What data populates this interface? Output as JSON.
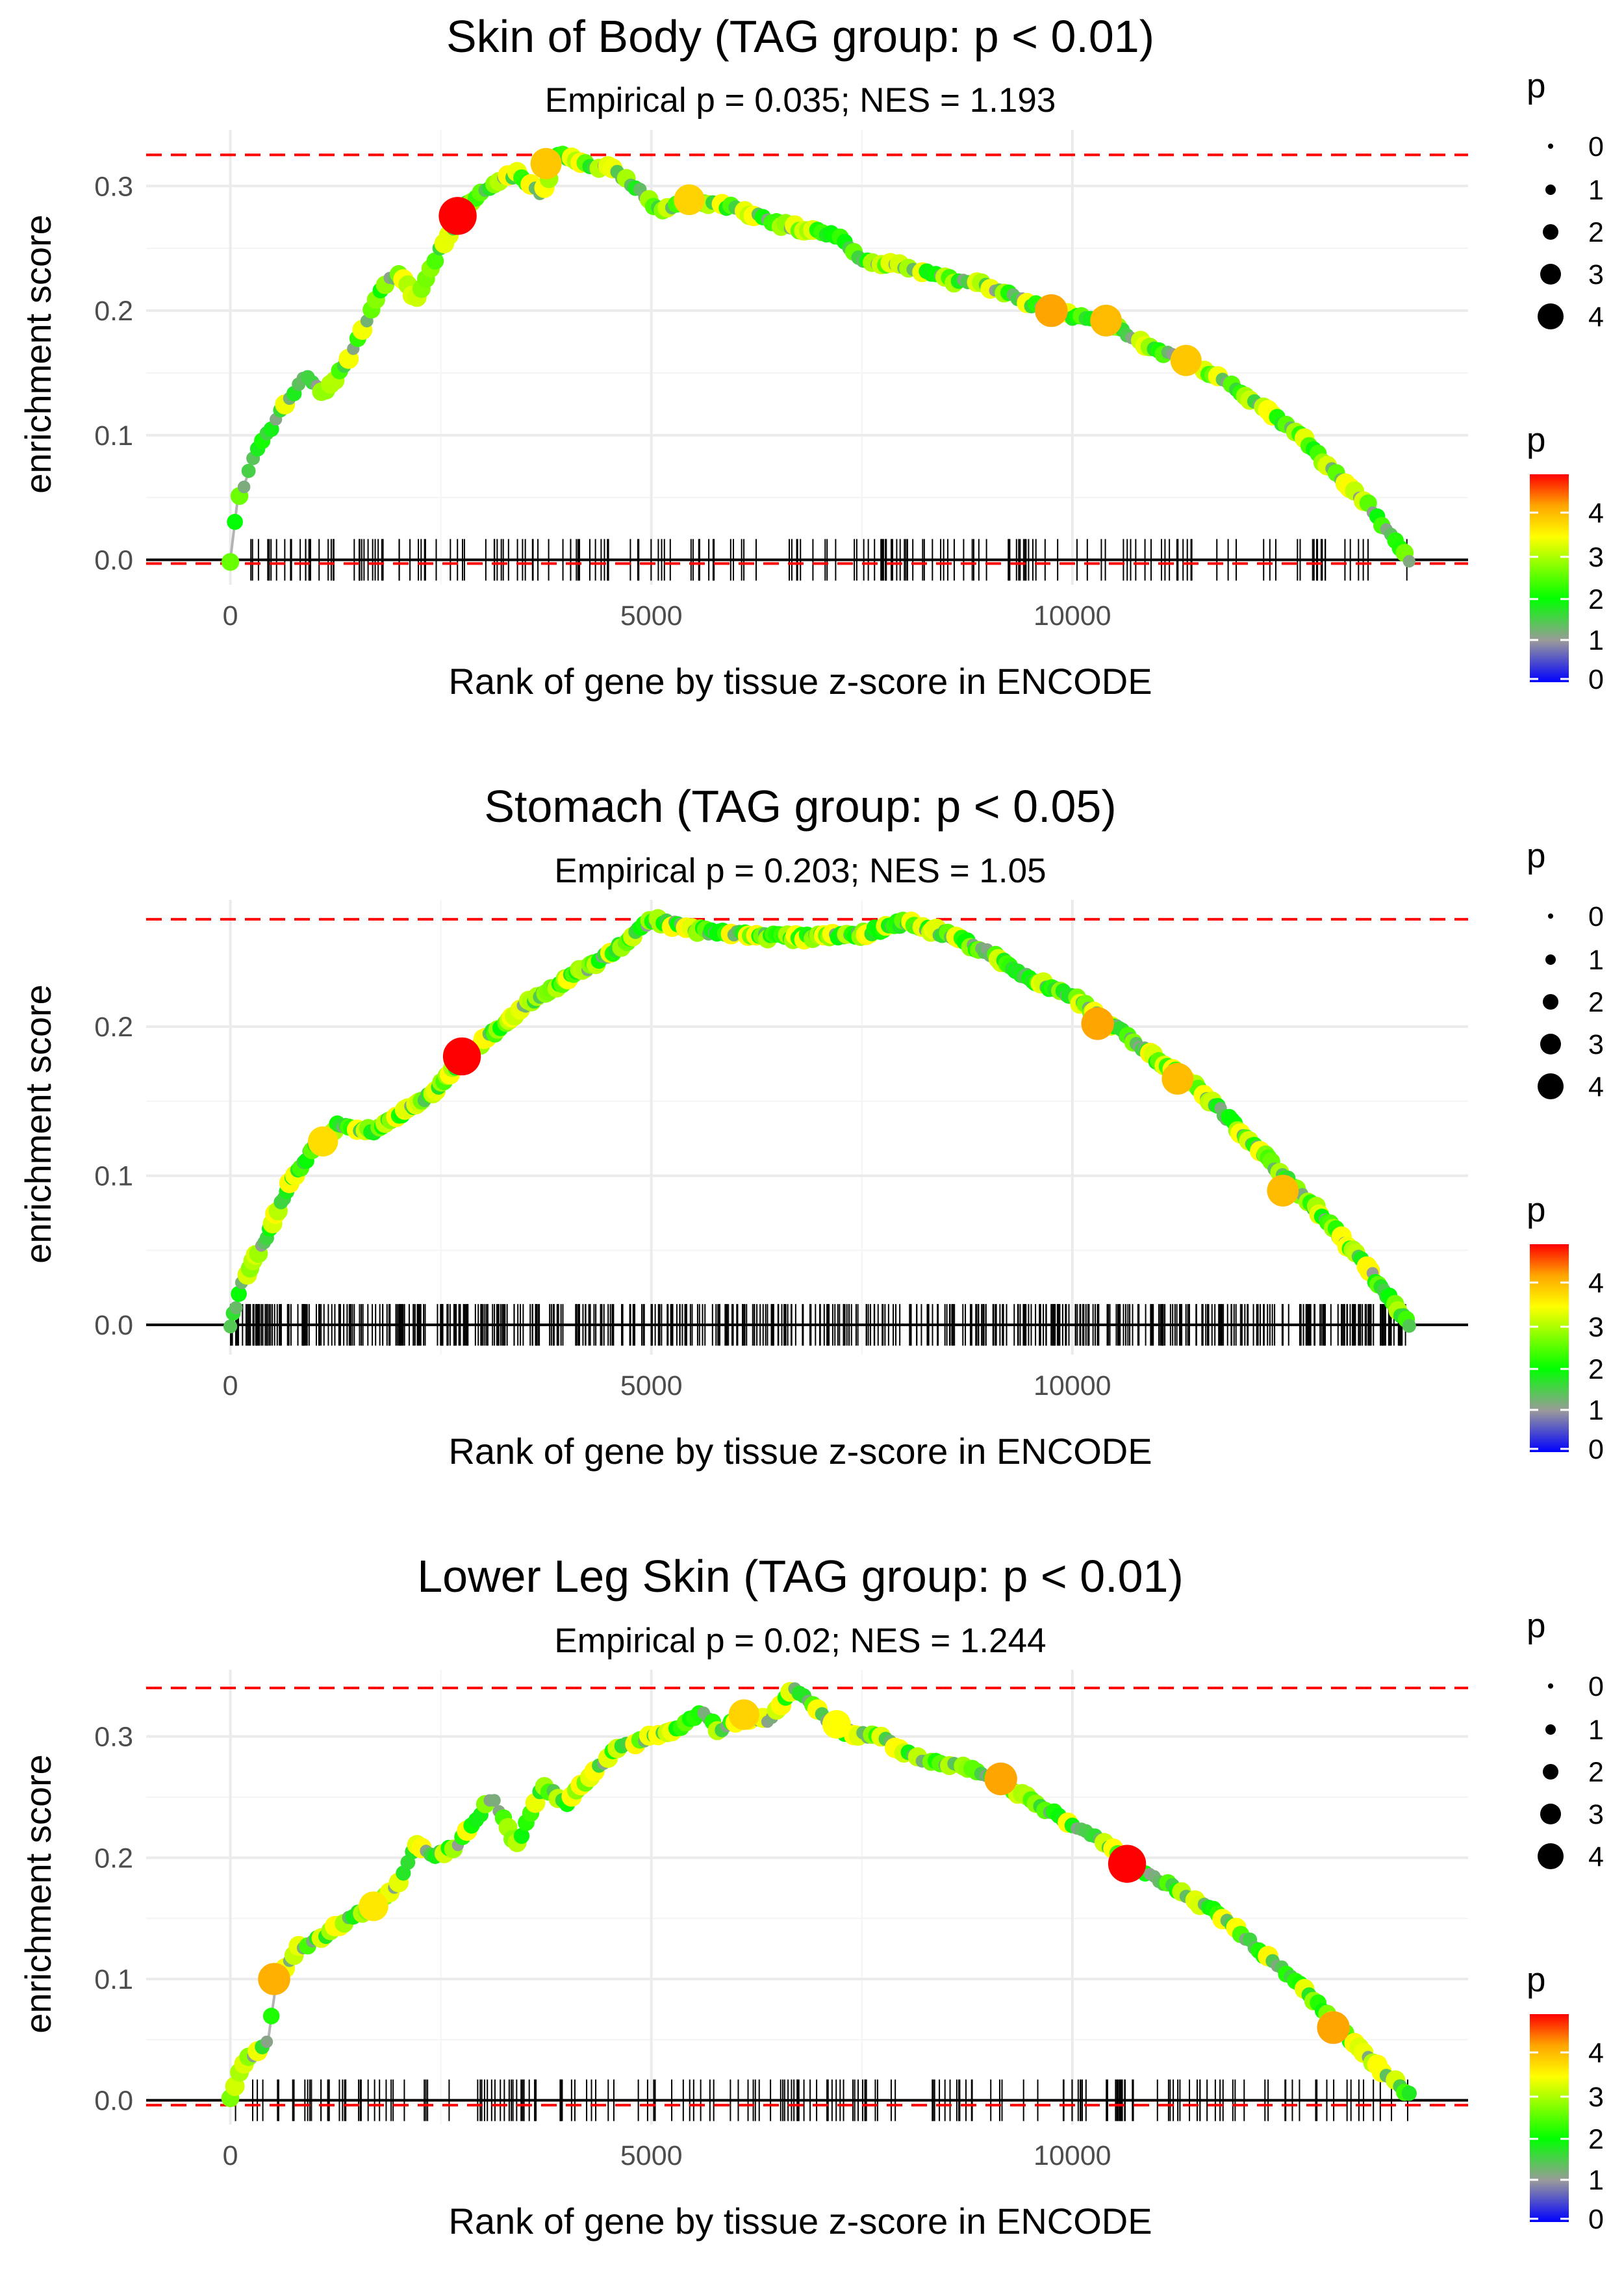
{
  "chart_data": [
    {
      "type": "scatter",
      "title": "Skin of Body (TAG group: p < 0.01)",
      "subtitle": "Empirical p = 0.035; NES = 1.193",
      "xlabel": "Rank of gene by tissue z-score in ENCODE",
      "ylabel": "enrichment score",
      "xlim": [
        -1000,
        14700
      ],
      "ylim": [
        -0.02,
        0.345
      ],
      "x_ticks": [
        0,
        5000,
        10000
      ],
      "x_tick_labels": [
        "0",
        "5000",
        "10000"
      ],
      "y_ticks": [
        0.0,
        0.1,
        0.2,
        0.3
      ],
      "y_tick_labels": [
        "0.0",
        "0.1",
        "0.2",
        "0.3"
      ],
      "max_es_line": 0.325,
      "min_es_line": -0.003,
      "gene_count": 14000,
      "hit_density": "sparse",
      "curve": [
        [
          0,
          0
        ],
        [
          80,
          0.045
        ],
        [
          300,
          0.085
        ],
        [
          600,
          0.12
        ],
        [
          900,
          0.148
        ],
        [
          1100,
          0.133
        ],
        [
          1400,
          0.16
        ],
        [
          1800,
          0.22
        ],
        [
          2000,
          0.23
        ],
        [
          2200,
          0.21
        ],
        [
          2500,
          0.25
        ],
        [
          2800,
          0.285
        ],
        [
          3100,
          0.3
        ],
        [
          3400,
          0.31
        ],
        [
          3700,
          0.292
        ],
        [
          3900,
          0.325
        ],
        [
          4200,
          0.318
        ],
        [
          4500,
          0.315
        ],
        [
          4800,
          0.3
        ],
        [
          5100,
          0.28
        ],
        [
          5500,
          0.288
        ],
        [
          6000,
          0.282
        ],
        [
          6500,
          0.27
        ],
        [
          6800,
          0.265
        ],
        [
          7200,
          0.26
        ],
        [
          7500,
          0.24
        ],
        [
          8000,
          0.235
        ],
        [
          8500,
          0.225
        ],
        [
          9000,
          0.22
        ],
        [
          9500,
          0.205
        ],
        [
          10000,
          0.195
        ],
        [
          10400,
          0.192
        ],
        [
          10800,
          0.175
        ],
        [
          11300,
          0.16
        ],
        [
          11800,
          0.145
        ],
        [
          12200,
          0.125
        ],
        [
          12700,
          0.1
        ],
        [
          13100,
          0.07
        ],
        [
          13500,
          0.045
        ],
        [
          14000,
          0
        ]
      ],
      "highlights": [
        [
          2700,
          0.276,
          4.8
        ],
        [
          3750,
          0.318,
          3.5
        ],
        [
          5450,
          0.289,
          3.4
        ],
        [
          9750,
          0.2,
          3.8
        ],
        [
          10400,
          0.192,
          3.6
        ],
        [
          11350,
          0.16,
          3.5
        ]
      ],
      "legend_size": {
        "title": "p",
        "labels": [
          "0",
          "1",
          "2",
          "3",
          "4"
        ]
      },
      "legend_color": {
        "title": "p",
        "labels": [
          "4",
          "3",
          "2",
          "1",
          "0"
        ]
      }
    },
    {
      "type": "scatter",
      "title": "Stomach (TAG group: p < 0.05)",
      "subtitle": "Empirical p = 0.203; NES = 1.05",
      "xlabel": "Rank of gene by tissue z-score in ENCODE",
      "ylabel": "enrichment score",
      "xlim": [
        -1000,
        14700
      ],
      "ylim": [
        -0.02,
        0.285
      ],
      "x_ticks": [
        0,
        5000,
        10000
      ],
      "x_tick_labels": [
        "0",
        "5000",
        "10000"
      ],
      "y_ticks": [
        0.0,
        0.1,
        0.2
      ],
      "y_tick_labels": [
        "0.0",
        "0.1",
        "0.2"
      ],
      "max_es_line": 0.272,
      "min_es_line": null,
      "gene_count": 14000,
      "hit_density": "dense",
      "curve": [
        [
          0,
          0
        ],
        [
          150,
          0.03
        ],
        [
          400,
          0.055
        ],
        [
          700,
          0.095
        ],
        [
          1000,
          0.12
        ],
        [
          1300,
          0.135
        ],
        [
          1700,
          0.13
        ],
        [
          2000,
          0.14
        ],
        [
          2400,
          0.155
        ],
        [
          2700,
          0.175
        ],
        [
          3000,
          0.19
        ],
        [
          3500,
          0.215
        ],
        [
          4000,
          0.232
        ],
        [
          4500,
          0.248
        ],
        [
          5000,
          0.272
        ],
        [
          5500,
          0.265
        ],
        [
          6000,
          0.262
        ],
        [
          6500,
          0.26
        ],
        [
          7000,
          0.26
        ],
        [
          7500,
          0.262
        ],
        [
          8000,
          0.27
        ],
        [
          8500,
          0.262
        ],
        [
          9000,
          0.25
        ],
        [
          9500,
          0.232
        ],
        [
          10000,
          0.22
        ],
        [
          10500,
          0.2
        ],
        [
          11000,
          0.178
        ],
        [
          11500,
          0.158
        ],
        [
          12000,
          0.13
        ],
        [
          12500,
          0.1
        ],
        [
          13000,
          0.072
        ],
        [
          13500,
          0.038
        ],
        [
          14000,
          0
        ]
      ],
      "highlights": [
        [
          2750,
          0.18,
          4.8
        ],
        [
          10300,
          0.202,
          3.8
        ],
        [
          11250,
          0.165,
          3.6
        ],
        [
          12500,
          0.09,
          3.6
        ],
        [
          1100,
          0.123,
          3.3
        ]
      ],
      "legend_size": {
        "title": "p",
        "labels": [
          "0",
          "1",
          "2",
          "3",
          "4"
        ]
      },
      "legend_color": {
        "title": "p",
        "labels": [
          "4",
          "3",
          "2",
          "1",
          "0"
        ]
      }
    },
    {
      "type": "scatter",
      "title": "Lower Leg Skin (TAG group: p < 0.01)",
      "subtitle": "Empirical p = 0.02; NES = 1.244",
      "xlabel": "Rank of gene by tissue z-score in ENCODE",
      "ylabel": "enrichment score",
      "xlim": [
        -1000,
        14700
      ],
      "ylim": [
        -0.02,
        0.355
      ],
      "x_ticks": [
        0,
        5000,
        10000
      ],
      "x_tick_labels": [
        "0",
        "5000",
        "10000"
      ],
      "y_ticks": [
        0.0,
        0.1,
        0.2,
        0.3
      ],
      "y_tick_labels": [
        "0.0",
        "0.1",
        "0.2",
        "0.3"
      ],
      "max_es_line": 0.34,
      "min_es_line": -0.004,
      "gene_count": 14000,
      "hit_density": "sparse",
      "curve": [
        [
          0,
          0
        ],
        [
          150,
          0.03
        ],
        [
          450,
          0.05
        ],
        [
          550,
          0.1
        ],
        [
          800,
          0.125
        ],
        [
          1100,
          0.135
        ],
        [
          1400,
          0.15
        ],
        [
          1700,
          0.16
        ],
        [
          2000,
          0.18
        ],
        [
          2200,
          0.21
        ],
        [
          2400,
          0.2
        ],
        [
          2700,
          0.21
        ],
        [
          3100,
          0.25
        ],
        [
          3400,
          0.21
        ],
        [
          3700,
          0.26
        ],
        [
          4000,
          0.245
        ],
        [
          4300,
          0.27
        ],
        [
          4600,
          0.29
        ],
        [
          5000,
          0.3
        ],
        [
          5300,
          0.305
        ],
        [
          5600,
          0.32
        ],
        [
          5800,
          0.305
        ],
        [
          6100,
          0.316
        ],
        [
          6400,
          0.314
        ],
        [
          6700,
          0.34
        ],
        [
          7000,
          0.32
        ],
        [
          7200,
          0.305
        ],
        [
          7700,
          0.3
        ],
        [
          8200,
          0.28
        ],
        [
          8700,
          0.275
        ],
        [
          9200,
          0.26
        ],
        [
          9700,
          0.24
        ],
        [
          10200,
          0.22
        ],
        [
          10700,
          0.195
        ],
        [
          11200,
          0.175
        ],
        [
          11700,
          0.155
        ],
        [
          12200,
          0.125
        ],
        [
          12700,
          0.095
        ],
        [
          13100,
          0.065
        ],
        [
          13500,
          0.035
        ],
        [
          14000,
          0.005
        ]
      ],
      "highlights": [
        [
          520,
          0.1,
          3.7
        ],
        [
          1700,
          0.16,
          3.2
        ],
        [
          6100,
          0.318,
          3.4
        ],
        [
          7200,
          0.31,
          3.0
        ],
        [
          9150,
          0.265,
          3.8
        ],
        [
          10650,
          0.195,
          4.8
        ],
        [
          13100,
          0.06,
          3.8
        ]
      ],
      "legend_size": {
        "title": "p",
        "labels": [
          "0",
          "1",
          "2",
          "3",
          "4"
        ]
      },
      "legend_color": {
        "title": "p",
        "labels": [
          "4",
          "3",
          "2",
          "1",
          "0"
        ]
      }
    }
  ],
  "colors": {
    "curve_line": "#b3b3b3",
    "max_line": "#ff0000",
    "zero_line": "#000000",
    "gradient": [
      "#0000ff",
      "#999999",
      "#00ff00",
      "#ffff00",
      "#ff0000"
    ]
  }
}
